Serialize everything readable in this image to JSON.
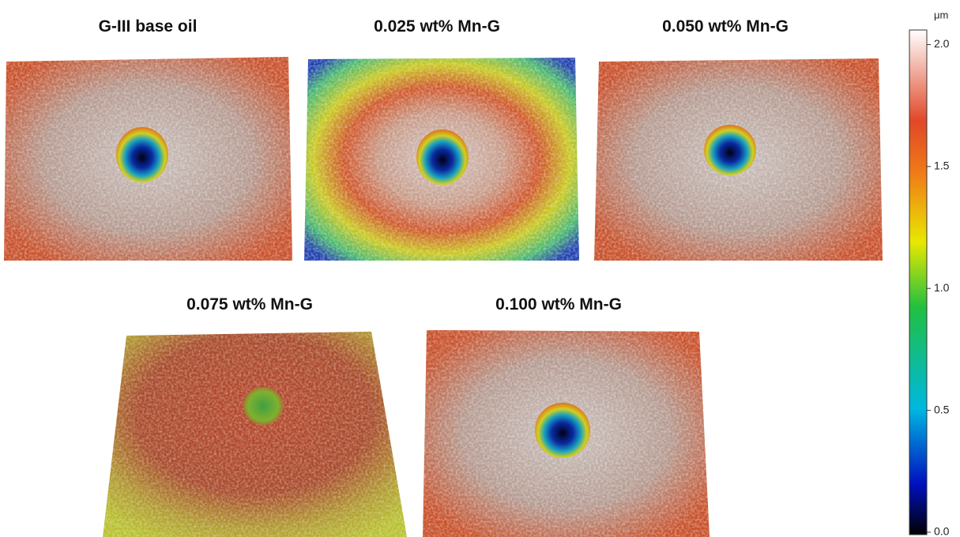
{
  "panels": [
    {
      "title": "G-III base oil"
    },
    {
      "title": "0.025 wt% Mn-G"
    },
    {
      "title": "0.050 wt% Mn-G"
    },
    {
      "title": "0.075 wt% Mn-G"
    },
    {
      "title": "0.100 wt% Mn-G"
    }
  ],
  "colorbar": {
    "unit": "μm",
    "lim": [
      -0.01,
      2.06
    ],
    "ticks": [
      {
        "value": 0,
        "label": "0.0"
      },
      {
        "value": 0.5,
        "label": "0.5"
      },
      {
        "value": 1,
        "label": "1.0"
      },
      {
        "value": 1.5,
        "label": "1.5"
      },
      {
        "value": 2,
        "label": "2.0"
      }
    ]
  }
}
